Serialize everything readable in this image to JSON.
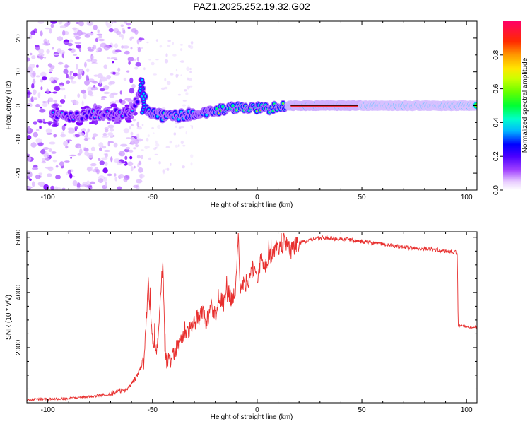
{
  "figure": {
    "title": "PAZ1.2025.252.19.32.G02"
  },
  "chart_data": [
    {
      "type": "heatmap",
      "xlabel": "Height of straight line (km)",
      "ylabel": "Frequency (Hz)",
      "xlim": [
        -110,
        105
      ],
      "ylim": [
        -25,
        25
      ],
      "xticks": [
        -100,
        -50,
        0,
        50,
        100
      ],
      "yticks": [
        -20,
        -10,
        0,
        10,
        20
      ],
      "colorbar": {
        "label": "Normalized spectral amplitude",
        "range": [
          0,
          1
        ],
        "ticks": [
          "0.0",
          "0.2",
          "0.4",
          "0.6",
          "0.8"
        ],
        "colors": [
          "#ffffff",
          "#c77dff",
          "#7b00ff",
          "#0000ff",
          "#00e5ff",
          "#00ff55",
          "#7dff00",
          "#ffe600",
          "#ff8000",
          "#ff0000",
          "#ff0066"
        ]
      },
      "ridge": [
        {
          "x": -97,
          "f": -3
        },
        {
          "x": -90,
          "f": -3.5
        },
        {
          "x": -80,
          "f": -2.5
        },
        {
          "x": -70,
          "f": -2.5
        },
        {
          "x": -60,
          "f": -2
        },
        {
          "x": -55,
          "f": 5
        },
        {
          "x": -52,
          "f": -2
        },
        {
          "x": -45,
          "f": -3
        },
        {
          "x": -35,
          "f": -3
        },
        {
          "x": -25,
          "f": -2
        },
        {
          "x": -15,
          "f": -1
        },
        {
          "x": -5,
          "f": -0.5
        },
        {
          "x": 5,
          "f": -1
        },
        {
          "x": 15,
          "f": 0
        },
        {
          "x": 50,
          "f": 0
        },
        {
          "x": 105,
          "f": 0
        }
      ]
    },
    {
      "type": "line",
      "xlabel": "Height of straight line (km)",
      "ylabel": "SNR (10 * v/v)",
      "xlim": [
        -110,
        105
      ],
      "ylim": [
        0,
        6200
      ],
      "xticks": [
        -100,
        -50,
        0,
        50,
        100
      ],
      "yticks": [
        2000,
        4000,
        6000
      ],
      "series": [
        {
          "color": "#e8302f",
          "x": [
            -110,
            -100,
            -90,
            -80,
            -70,
            -62,
            -58,
            -54,
            -52,
            -50,
            -48,
            -46,
            -45,
            -44,
            -42,
            -40,
            -38,
            -35,
            -32,
            -30,
            -28,
            -26,
            -24,
            -22,
            -20,
            -18,
            -16,
            -14,
            -12,
            -10,
            -9,
            -8,
            -6,
            -4,
            -2,
            0,
            2,
            4,
            6,
            8,
            10,
            12,
            14,
            16,
            18,
            20,
            25,
            30,
            35,
            40,
            45,
            50,
            55,
            60,
            65,
            70,
            75,
            80,
            85,
            90,
            95,
            95.6,
            96,
            100,
            105
          ],
          "y": [
            120,
            130,
            160,
            220,
            320,
            500,
            900,
            1500,
            4400,
            2200,
            1700,
            4200,
            5200,
            1600,
            1500,
            1800,
            2100,
            2400,
            2700,
            2900,
            3100,
            3300,
            2900,
            3500,
            3200,
            3800,
            3600,
            4000,
            3700,
            4300,
            6100,
            4200,
            4300,
            4500,
            4900,
            4500,
            5200,
            5000,
            5300,
            5500,
            5600,
            5700,
            5800,
            5500,
            5700,
            5800,
            5900,
            6000,
            5950,
            5950,
            5900,
            5850,
            5800,
            5750,
            5700,
            5650,
            5600,
            5600,
            5550,
            5500,
            5450,
            5400,
            2800,
            2750,
            2750
          ]
        }
      ]
    }
  ]
}
